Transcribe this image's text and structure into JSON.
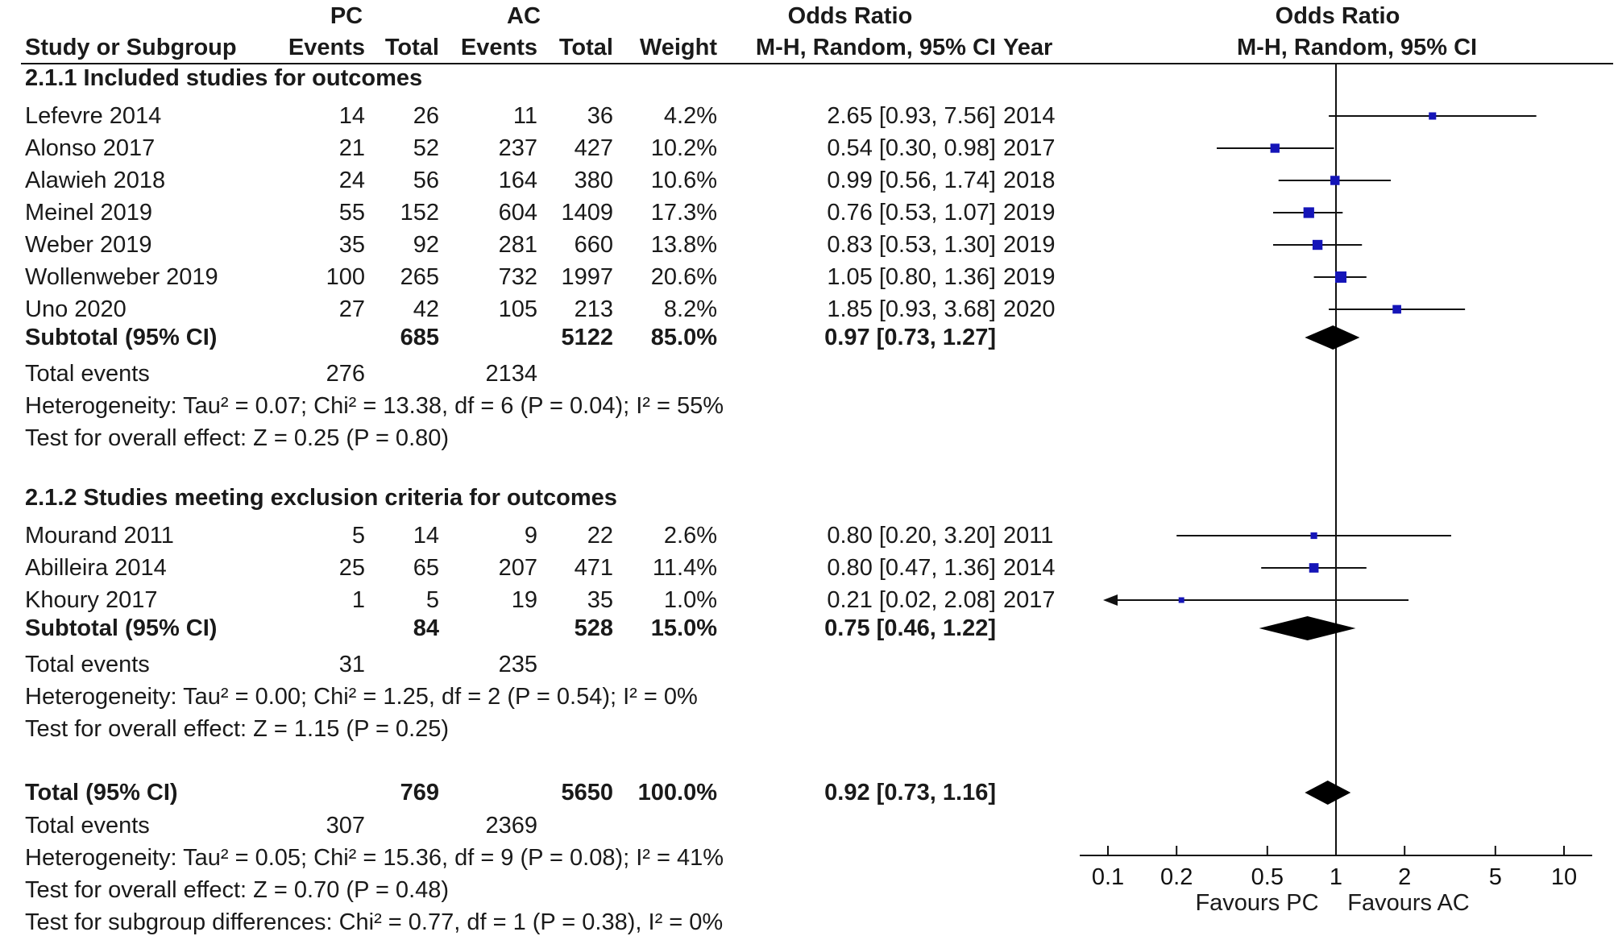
{
  "header": {
    "group_pc": "PC",
    "group_ac": "AC",
    "or_title": "Odds Ratio",
    "plot_title": "Odds Ratio",
    "col_study": "Study or Subgroup",
    "col_events_pc": "Events",
    "col_total_pc": "Total",
    "col_events_ac": "Events",
    "col_total_ac": "Total",
    "col_weight": "Weight",
    "col_or": "M-H, Random, 95% CI",
    "col_year": "Year",
    "plot_subtitle": "M-H, Random, 95% CI"
  },
  "subgroups": [
    {
      "title": "2.1.1 Included studies for outcomes",
      "studies": [
        {
          "name": "Lefevre 2014",
          "pc_events": "14",
          "pc_total": "26",
          "ac_events": "11",
          "ac_total": "36",
          "weight": "4.2%",
          "ci_text": "2.65 [0.93, 7.56]",
          "year": "2014"
        },
        {
          "name": "Alonso 2017",
          "pc_events": "21",
          "pc_total": "52",
          "ac_events": "237",
          "ac_total": "427",
          "weight": "10.2%",
          "ci_text": "0.54 [0.30, 0.98]",
          "year": "2017"
        },
        {
          "name": "Alawieh 2018",
          "pc_events": "24",
          "pc_total": "56",
          "ac_events": "164",
          "ac_total": "380",
          "weight": "10.6%",
          "ci_text": "0.99 [0.56, 1.74]",
          "year": "2018"
        },
        {
          "name": "Meinel 2019",
          "pc_events": "55",
          "pc_total": "152",
          "ac_events": "604",
          "ac_total": "1409",
          "weight": "17.3%",
          "ci_text": "0.76 [0.53, 1.07]",
          "year": "2019"
        },
        {
          "name": "Weber 2019",
          "pc_events": "35",
          "pc_total": "92",
          "ac_events": "281",
          "ac_total": "660",
          "weight": "13.8%",
          "ci_text": "0.83 [0.53, 1.30]",
          "year": "2019"
        },
        {
          "name": "Wollenweber 2019",
          "pc_events": "100",
          "pc_total": "265",
          "ac_events": "732",
          "ac_total": "1997",
          "weight": "20.6%",
          "ci_text": "1.05 [0.80, 1.36]",
          "year": "2019"
        },
        {
          "name": "Uno 2020",
          "pc_events": "27",
          "pc_total": "42",
          "ac_events": "105",
          "ac_total": "213",
          "weight": "8.2%",
          "ci_text": "1.85 [0.93, 3.68]",
          "year": "2020"
        }
      ],
      "subtotal": {
        "label": "Subtotal (95% CI)",
        "pc_total": "685",
        "ac_total": "5122",
        "weight": "85.0%",
        "ci_text": "0.97 [0.73, 1.27]"
      },
      "total_events": {
        "label": "Total events",
        "pc": "276",
        "ac": "2134"
      },
      "heterogeneity": "Heterogeneity: Tau² = 0.07; Chi² = 13.38, df = 6 (P = 0.04); I² = 55%",
      "overall_effect": "Test for overall effect: Z = 0.25 (P = 0.80)"
    },
    {
      "title": "2.1.2 Studies meeting exclusion criteria for outcomes",
      "studies": [
        {
          "name": "Mourand 2011",
          "pc_events": "5",
          "pc_total": "14",
          "ac_events": "9",
          "ac_total": "22",
          "weight": "2.6%",
          "ci_text": "0.80 [0.20, 3.20]",
          "year": "2011"
        },
        {
          "name": "Abilleira 2014",
          "pc_events": "25",
          "pc_total": "65",
          "ac_events": "207",
          "ac_total": "471",
          "weight": "11.4%",
          "ci_text": "0.80 [0.47, 1.36]",
          "year": "2014"
        },
        {
          "name": "Khoury 2017",
          "pc_events": "1",
          "pc_total": "5",
          "ac_events": "19",
          "ac_total": "35",
          "weight": "1.0%",
          "ci_text": "0.21 [0.02, 2.08]",
          "year": "2017"
        }
      ],
      "subtotal": {
        "label": "Subtotal (95% CI)",
        "pc_total": "84",
        "ac_total": "528",
        "weight": "15.0%",
        "ci_text": "0.75 [0.46, 1.22]"
      },
      "total_events": {
        "label": "Total events",
        "pc": "31",
        "ac": "235"
      },
      "heterogeneity": "Heterogeneity: Tau² = 0.00; Chi² = 1.25, df = 2 (P = 0.54); I² = 0%",
      "overall_effect": "Test for overall effect: Z = 1.15 (P = 0.25)"
    }
  ],
  "overall": {
    "label": "Total (95% CI)",
    "pc_total": "769",
    "ac_total": "5650",
    "weight": "100.0%",
    "ci_text": "0.92 [0.73, 1.16]",
    "total_events": {
      "label": "Total events",
      "pc": "307",
      "ac": "2369"
    },
    "heterogeneity": "Heterogeneity: Tau² = 0.05; Chi² = 15.36, df = 9 (P = 0.08); I² = 41%",
    "overall_effect": "Test for overall effect: Z = 0.70 (P = 0.48)",
    "subgroup_diff": "Test for subgroup differences: Chi² = 0.77, df = 1 (P = 0.38), I² = 0%"
  },
  "axis": {
    "favours_left": "Favours PC",
    "favours_right": "Favours AC"
  },
  "colors": {
    "marker": "#1515b8",
    "ink": "#111111",
    "diamond": "#000000"
  },
  "chart_data": {
    "type": "forest",
    "x_scale": "log",
    "xlim": [
      0.1,
      10
    ],
    "ticks": [
      0.1,
      0.2,
      0.5,
      1,
      2,
      5,
      10
    ],
    "reference_line": 1,
    "studies": [
      {
        "name": "Lefevre 2014",
        "or": 2.65,
        "lo": 0.93,
        "hi": 7.56,
        "weight": 4.2
      },
      {
        "name": "Alonso 2017",
        "or": 0.54,
        "lo": 0.3,
        "hi": 0.98,
        "weight": 10.2
      },
      {
        "name": "Alawieh 2018",
        "or": 0.99,
        "lo": 0.56,
        "hi": 1.74,
        "weight": 10.6
      },
      {
        "name": "Meinel 2019",
        "or": 0.76,
        "lo": 0.53,
        "hi": 1.07,
        "weight": 17.3
      },
      {
        "name": "Weber 2019",
        "or": 0.83,
        "lo": 0.53,
        "hi": 1.3,
        "weight": 13.8
      },
      {
        "name": "Wollenweber 2019",
        "or": 1.05,
        "lo": 0.8,
        "hi": 1.36,
        "weight": 20.6
      },
      {
        "name": "Uno 2020",
        "or": 1.85,
        "lo": 0.93,
        "hi": 3.68,
        "weight": 8.2
      },
      {
        "name": "Mourand 2011",
        "or": 0.8,
        "lo": 0.2,
        "hi": 3.2,
        "weight": 2.6
      },
      {
        "name": "Abilleira 2014",
        "or": 0.8,
        "lo": 0.47,
        "hi": 1.36,
        "weight": 11.4
      },
      {
        "name": "Khoury 2017",
        "or": 0.21,
        "lo": 0.02,
        "hi": 2.08,
        "weight": 1.0
      }
    ],
    "pooled": [
      {
        "name": "Subtotal 2.1.1",
        "or": 0.97,
        "lo": 0.73,
        "hi": 1.27
      },
      {
        "name": "Subtotal 2.1.2",
        "or": 0.75,
        "lo": 0.46,
        "hi": 1.22
      },
      {
        "name": "Total",
        "or": 0.92,
        "lo": 0.73,
        "hi": 1.16
      }
    ]
  }
}
